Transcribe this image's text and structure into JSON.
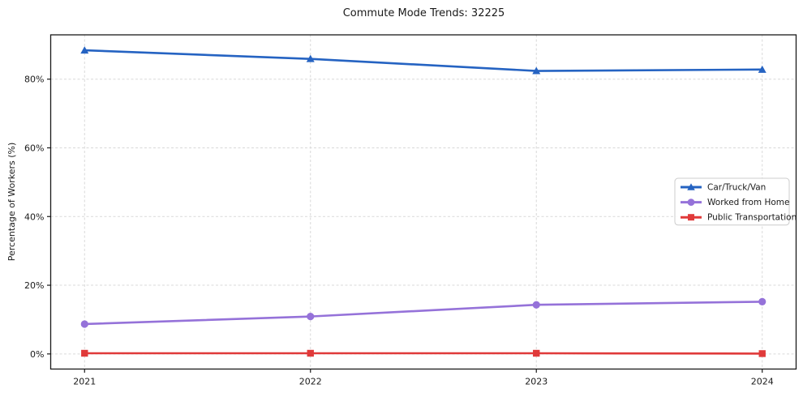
{
  "figure": {
    "title": "Commute Mode Trends: 32225",
    "background_color": "#ffffff"
  },
  "chart_data": {
    "type": "line",
    "title": "Commute Mode Trends: 32225",
    "xlabel": "",
    "ylabel": "Percentage of Workers (%)",
    "x": [
      2021,
      2022,
      2023,
      2024
    ],
    "x_tick_labels": [
      "2021",
      "2022",
      "2023",
      "2024"
    ],
    "y_ticks": [
      0,
      20,
      40,
      60,
      80
    ],
    "y_tick_labels": [
      "0%",
      "20%",
      "40%",
      "60%",
      "80%"
    ],
    "xlim": [
      2020.85,
      2024.15
    ],
    "ylim": [
      -4.4,
      92.9
    ],
    "grid": {
      "show": true,
      "style": "dashed",
      "color": "#d9d9d9"
    },
    "axes": {
      "frame_color": "#1a1a1a",
      "tick_color": "#1a1a1a"
    },
    "legend": {
      "position": "center-right",
      "border_color": "#cccccc",
      "background_color": "#ffffff"
    },
    "series": [
      {
        "name": "Car/Truck/Van",
        "color": "#2563c2",
        "marker": "triangle",
        "values": [
          88.4,
          85.9,
          82.4,
          82.8
        ]
      },
      {
        "name": "Worked from Home",
        "color": "#9572d9",
        "marker": "circle",
        "values": [
          8.7,
          10.9,
          14.3,
          15.2
        ]
      },
      {
        "name": "Public Transportation",
        "color": "#e03a3a",
        "marker": "square",
        "values": [
          0.2,
          0.2,
          0.2,
          0.1
        ]
      }
    ]
  }
}
